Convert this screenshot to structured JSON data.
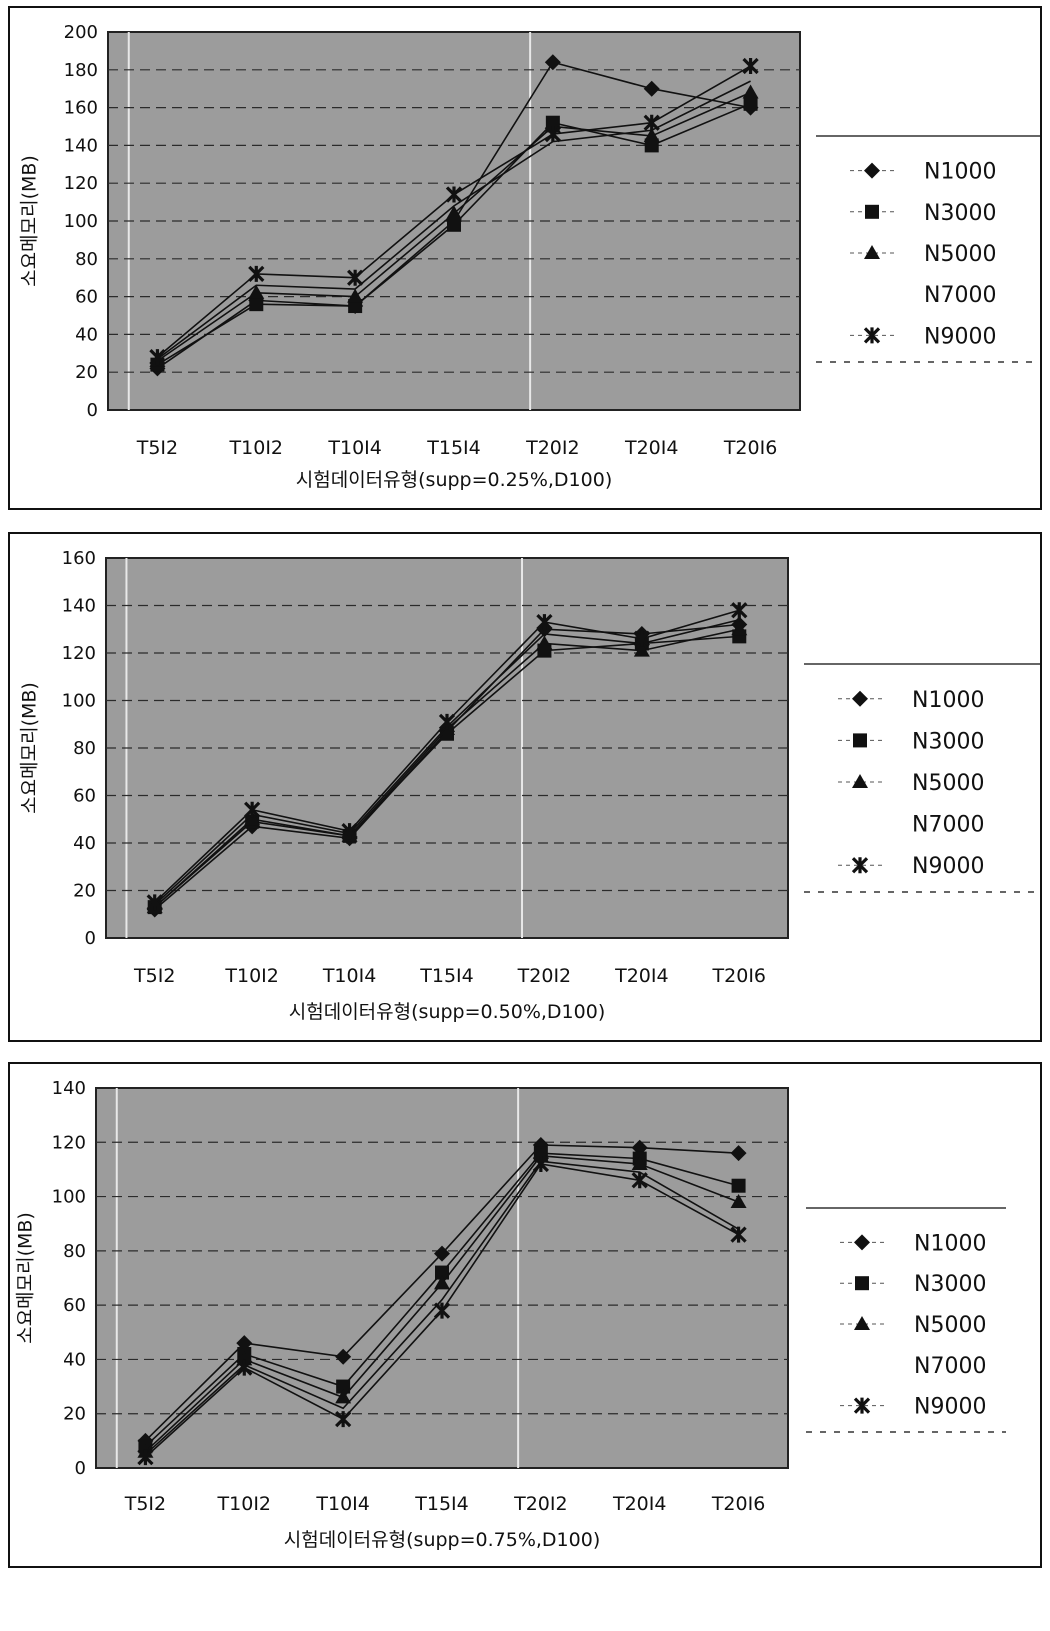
{
  "colors": {
    "plot_bg": "#9c9c9c",
    "grid": "#2b2b2b",
    "series": "#111111",
    "border": "#111111"
  },
  "chart_data": [
    {
      "type": "line",
      "title": "",
      "xlabel": "시험데이터유형(supp=0.25%,D100)",
      "ylabel": "소요메모리(MB)",
      "categories": [
        "T5I2",
        "T10I2",
        "T10I4",
        "T15I4",
        "T20I2",
        "T20I4",
        "T20I6"
      ],
      "ylim": [
        0,
        200
      ],
      "yticks": [
        0,
        20,
        40,
        60,
        80,
        100,
        120,
        140,
        160,
        180,
        200
      ],
      "grid": true,
      "legend_position": "right",
      "series": [
        {
          "name": "N1000",
          "marker": "diamond",
          "values": [
            22,
            58,
            55,
            100,
            184,
            170,
            160
          ]
        },
        {
          "name": "N3000",
          "marker": "square",
          "values": [
            24,
            56,
            55,
            98,
            152,
            140,
            162
          ]
        },
        {
          "name": "N5000",
          "marker": "triangle",
          "values": [
            26,
            62,
            60,
            104,
            150,
            145,
            168
          ]
        },
        {
          "name": "N7000",
          "marker": "none",
          "values": [
            27,
            66,
            64,
            108,
            142,
            148,
            174
          ]
        },
        {
          "name": "N9000",
          "marker": "star",
          "values": [
            28,
            72,
            70,
            114,
            146,
            152,
            182
          ]
        }
      ]
    },
    {
      "type": "line",
      "title": "",
      "xlabel": "시험데이터유형(supp=0.50%,D100)",
      "ylabel": "소요메모리(MB)",
      "categories": [
        "T5I2",
        "T10I2",
        "T10I4",
        "T15I4",
        "T20I2",
        "T20I4",
        "T20I6"
      ],
      "ylim": [
        0,
        160
      ],
      "yticks": [
        0,
        20,
        40,
        60,
        80,
        100,
        120,
        140,
        160
      ],
      "grid": true,
      "legend_position": "right",
      "series": [
        {
          "name": "N1000",
          "marker": "diamond",
          "values": [
            12,
            47,
            42,
            87,
            130,
            128,
            132
          ]
        },
        {
          "name": "N3000",
          "marker": "square",
          "values": [
            13,
            49,
            43,
            86,
            121,
            124,
            127
          ]
        },
        {
          "name": "N5000",
          "marker": "triangle",
          "values": [
            13,
            50,
            43,
            88,
            124,
            121,
            130
          ]
        },
        {
          "name": "N7000",
          "marker": "none",
          "values": [
            14,
            52,
            44,
            89,
            128,
            124,
            134
          ]
        },
        {
          "name": "N9000",
          "marker": "star",
          "values": [
            15,
            54,
            45,
            91,
            133,
            126,
            138
          ]
        }
      ]
    },
    {
      "type": "line",
      "title": "",
      "xlabel": "시험데이터유형(supp=0.75%,D100)",
      "ylabel": "소요메모리(MB)",
      "categories": [
        "T5I2",
        "T10I2",
        "T10I4",
        "T15I4",
        "T20I2",
        "T20I4",
        "T20I6"
      ],
      "ylim": [
        0,
        140
      ],
      "yticks": [
        0,
        20,
        40,
        60,
        80,
        100,
        120,
        140
      ],
      "grid": true,
      "legend_position": "right",
      "series": [
        {
          "name": "N1000",
          "marker": "diamond",
          "values": [
            10,
            46,
            41,
            79,
            119,
            118,
            116
          ]
        },
        {
          "name": "N3000",
          "marker": "square",
          "values": [
            8,
            42,
            30,
            72,
            116,
            114,
            104
          ]
        },
        {
          "name": "N5000",
          "marker": "triangle",
          "values": [
            6,
            40,
            26,
            68,
            115,
            112,
            98
          ]
        },
        {
          "name": "N7000",
          "marker": "none",
          "values": [
            5,
            38,
            22,
            62,
            113,
            109,
            88
          ]
        },
        {
          "name": "N9000",
          "marker": "star",
          "values": [
            4,
            37,
            18,
            58,
            112,
            106,
            86
          ]
        }
      ]
    }
  ]
}
